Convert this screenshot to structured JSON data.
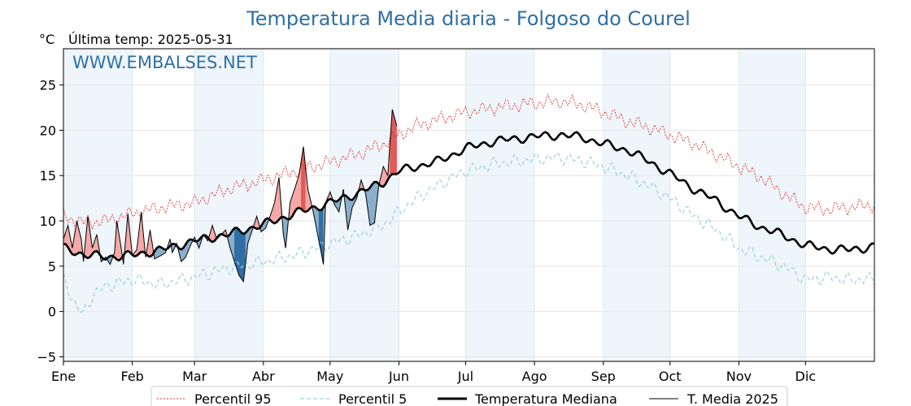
{
  "chart_data": {
    "type": "line",
    "title": "Temperatura Media diaria - Folgoso do Courel",
    "unit_label": "°C",
    "subtitle": "Última temp: 2025-05-31",
    "watermark": "WWW.EMBALSES.NET",
    "ylim": [
      -5.5,
      29
    ],
    "y_ticks": [
      "−5",
      "0",
      "5",
      "10",
      "15",
      "20",
      "25"
    ],
    "y_tick_values": [
      -5,
      0,
      5,
      10,
      15,
      20,
      25
    ],
    "x_range": [
      1,
      366
    ],
    "month_labels": [
      "Ene",
      "Feb",
      "Mar",
      "Abr",
      "May",
      "Jun",
      "Jul",
      "Ago",
      "Sep",
      "Oct",
      "Nov",
      "Dic"
    ],
    "month_start_days": [
      1,
      32,
      60,
      91,
      121,
      152,
      182,
      213,
      244,
      274,
      305,
      335
    ],
    "grid": true,
    "legend_position": "bottom",
    "colors": {
      "p95": "#e8312c",
      "p5": "#9fd0de",
      "median": "#000000",
      "current": "#000000",
      "above": "#f4a9a8",
      "above_strong": "#e05a57",
      "below": "#8aafcc",
      "below_strong": "#2f6fa6",
      "band": "#eef5fb",
      "title": "#2f6fa6"
    },
    "series": [
      {
        "name": "Percentil 95",
        "style": "dotted-red",
        "knots": [
          [
            1,
            10.5
          ],
          [
            10,
            9.8
          ],
          [
            20,
            10.0
          ],
          [
            32,
            10.8
          ],
          [
            45,
            11.5
          ],
          [
            60,
            12.0
          ],
          [
            75,
            13.5
          ],
          [
            91,
            14.5
          ],
          [
            105,
            15.5
          ],
          [
            121,
            16.5
          ],
          [
            135,
            17.5
          ],
          [
            145,
            18.5
          ],
          [
            152,
            19.5
          ],
          [
            160,
            20.5
          ],
          [
            170,
            21.2
          ],
          [
            182,
            22.0
          ],
          [
            195,
            22.5
          ],
          [
            213,
            23.0
          ],
          [
            225,
            23.2
          ],
          [
            235,
            22.8
          ],
          [
            244,
            22.0
          ],
          [
            255,
            21.0
          ],
          [
            265,
            20.3
          ],
          [
            274,
            19.5
          ],
          [
            285,
            18.5
          ],
          [
            295,
            17.3
          ],
          [
            305,
            16.0
          ],
          [
            315,
            14.8
          ],
          [
            325,
            13.0
          ],
          [
            335,
            11.5
          ],
          [
            345,
            11.3
          ],
          [
            355,
            11.5
          ],
          [
            366,
            11.8
          ]
        ]
      },
      {
        "name": "Percentil 5",
        "style": "dashed-lightblue",
        "knots": [
          [
            1,
            3.5
          ],
          [
            4,
            2.0
          ],
          [
            7,
            0.5
          ],
          [
            10,
            -0.3
          ],
          [
            14,
            1.8
          ],
          [
            20,
            2.8
          ],
          [
            32,
            3.5
          ],
          [
            45,
            3.0
          ],
          [
            60,
            3.8
          ],
          [
            75,
            4.8
          ],
          [
            91,
            5.5
          ],
          [
            105,
            6.2
          ],
          [
            121,
            7.5
          ],
          [
            135,
            8.5
          ],
          [
            145,
            9.5
          ],
          [
            152,
            11.0
          ],
          [
            160,
            12.5
          ],
          [
            170,
            14.0
          ],
          [
            182,
            15.5
          ],
          [
            195,
            16.3
          ],
          [
            213,
            16.8
          ],
          [
            225,
            17.0
          ],
          [
            235,
            16.6
          ],
          [
            244,
            16.0
          ],
          [
            255,
            15.0
          ],
          [
            265,
            13.8
          ],
          [
            274,
            12.5
          ],
          [
            285,
            10.5
          ],
          [
            295,
            9.0
          ],
          [
            305,
            7.0
          ],
          [
            315,
            6.0
          ],
          [
            325,
            5.0
          ],
          [
            335,
            3.5
          ],
          [
            345,
            3.8
          ],
          [
            355,
            3.5
          ],
          [
            366,
            3.6
          ]
        ]
      },
      {
        "name": "Temperatura Mediana",
        "style": "thick-black",
        "knots": [
          [
            1,
            7.0
          ],
          [
            10,
            6.3
          ],
          [
            20,
            6.0
          ],
          [
            32,
            6.2
          ],
          [
            45,
            6.8
          ],
          [
            60,
            7.8
          ],
          [
            75,
            8.5
          ],
          [
            91,
            9.6
          ],
          [
            105,
            10.8
          ],
          [
            121,
            12.0
          ],
          [
            135,
            13.2
          ],
          [
            145,
            14.3
          ],
          [
            152,
            15.5
          ],
          [
            160,
            16.0
          ],
          [
            170,
            16.6
          ],
          [
            182,
            18.0
          ],
          [
            195,
            18.8
          ],
          [
            213,
            19.3
          ],
          [
            225,
            19.5
          ],
          [
            235,
            19.2
          ],
          [
            244,
            18.5
          ],
          [
            255,
            17.8
          ],
          [
            265,
            16.5
          ],
          [
            274,
            15.2
          ],
          [
            285,
            13.5
          ],
          [
            295,
            12.2
          ],
          [
            305,
            10.5
          ],
          [
            315,
            9.3
          ],
          [
            325,
            8.4
          ],
          [
            335,
            7.3
          ],
          [
            345,
            6.9
          ],
          [
            355,
            6.8
          ],
          [
            366,
            7.2
          ]
        ]
      },
      {
        "name": "T. Media 2025",
        "style": "thin-black",
        "last_day": 151,
        "knots": [
          [
            1,
            8.0
          ],
          [
            3,
            9.5
          ],
          [
            5,
            7.0
          ],
          [
            7,
            10.0
          ],
          [
            9,
            8.0
          ],
          [
            10,
            5.5
          ],
          [
            12,
            10.5
          ],
          [
            14,
            7.0
          ],
          [
            16,
            8.5
          ],
          [
            18,
            5.5
          ],
          [
            20,
            6.0
          ],
          [
            22,
            5.2
          ],
          [
            24,
            6.5
          ],
          [
            25,
            10.0
          ],
          [
            27,
            7.0
          ],
          [
            28,
            5.2
          ],
          [
            30,
            10.8
          ],
          [
            32,
            6.2
          ],
          [
            34,
            6.8
          ],
          [
            36,
            11.0
          ],
          [
            38,
            6.0
          ],
          [
            40,
            9.0
          ],
          [
            42,
            5.8
          ],
          [
            45,
            6.2
          ],
          [
            47,
            6.5
          ],
          [
            49,
            8.0
          ],
          [
            50,
            6.5
          ],
          [
            52,
            7.5
          ],
          [
            54,
            5.5
          ],
          [
            56,
            6.0
          ],
          [
            58,
            7.2
          ],
          [
            60,
            8.2
          ],
          [
            62,
            7.0
          ],
          [
            64,
            8.5
          ],
          [
            66,
            7.8
          ],
          [
            68,
            9.5
          ],
          [
            70,
            8.0
          ],
          [
            72,
            8.5
          ],
          [
            74,
            9.0
          ],
          [
            76,
            7.0
          ],
          [
            78,
            5.5
          ],
          [
            80,
            4.0
          ],
          [
            82,
            3.3
          ],
          [
            84,
            7.5
          ],
          [
            86,
            9.0
          ],
          [
            88,
            10.5
          ],
          [
            90,
            8.8
          ],
          [
            92,
            9.2
          ],
          [
            94,
            10.5
          ],
          [
            96,
            12.0
          ],
          [
            98,
            14.8
          ],
          [
            100,
            8.5
          ],
          [
            101,
            7.0
          ],
          [
            103,
            12.0
          ],
          [
            105,
            13.5
          ],
          [
            107,
            15.0
          ],
          [
            109,
            18.2
          ],
          [
            111,
            13.5
          ],
          [
            113,
            11.5
          ],
          [
            115,
            9.0
          ],
          [
            117,
            6.5
          ],
          [
            118,
            5.2
          ],
          [
            119,
            12.0
          ],
          [
            121,
            13.2
          ],
          [
            123,
            11.8
          ],
          [
            125,
            11.0
          ],
          [
            127,
            13.5
          ],
          [
            129,
            9.0
          ],
          [
            131,
            11.5
          ],
          [
            133,
            12.5
          ],
          [
            135,
            14.5
          ],
          [
            137,
            13.0
          ],
          [
            139,
            9.5
          ],
          [
            141,
            9.8
          ],
          [
            143,
            14.0
          ],
          [
            145,
            16.0
          ],
          [
            147,
            15.0
          ],
          [
            149,
            22.3
          ],
          [
            151,
            20.5
          ]
        ]
      }
    ]
  }
}
